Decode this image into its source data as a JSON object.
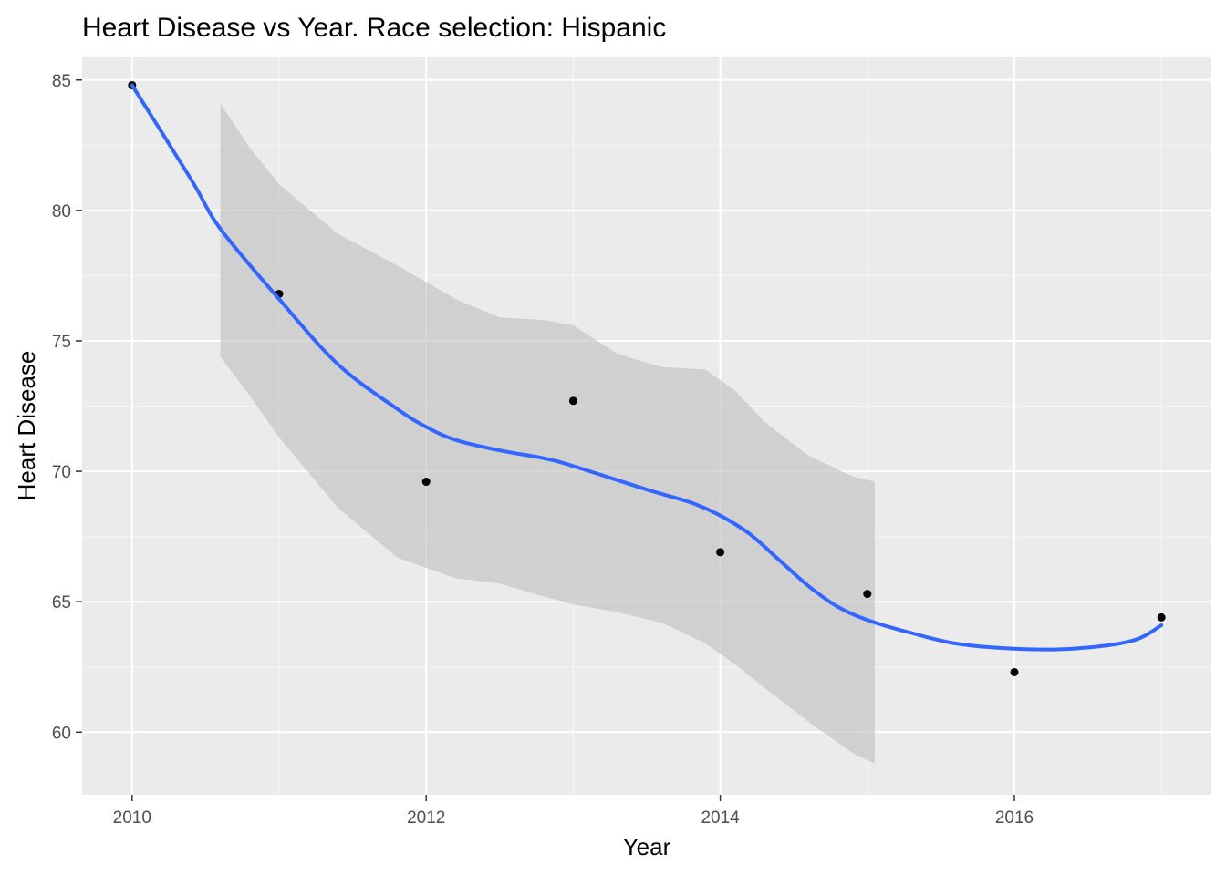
{
  "chart_data": {
    "type": "scatter",
    "title": "Heart Disease vs Year. Race selection: Hispanic",
    "xlabel": "Year",
    "ylabel": "Heart Disease",
    "xlim": [
      2009.66,
      2017.34
    ],
    "ylim": [
      57.6,
      85.9
    ],
    "x_ticks": [
      2010,
      2012,
      2014,
      2016
    ],
    "y_ticks": [
      60,
      65,
      70,
      75,
      80,
      85
    ],
    "x_tick_labels": [
      "2010",
      "2012",
      "2014",
      "2016"
    ],
    "y_tick_labels": [
      "60",
      "65",
      "70",
      "75",
      "80",
      "85"
    ],
    "grid": true,
    "points": [
      {
        "x": 2010,
        "y": 84.8
      },
      {
        "x": 2011,
        "y": 76.8
      },
      {
        "x": 2012,
        "y": 69.6
      },
      {
        "x": 2013,
        "y": 72.7
      },
      {
        "x": 2014,
        "y": 66.9
      },
      {
        "x": 2015,
        "y": 65.3
      },
      {
        "x": 2016,
        "y": 62.3
      },
      {
        "x": 2017,
        "y": 64.4
      }
    ],
    "smooth": {
      "x": [
        2010.0,
        2010.4,
        2010.6,
        2011.0,
        2011.4,
        2011.8,
        2012.0,
        2012.2,
        2012.5,
        2012.8,
        2013.0,
        2013.5,
        2013.8,
        2014.0,
        2014.2,
        2014.4,
        2014.6,
        2014.8,
        2015.0,
        2015.3,
        2015.6,
        2016.0,
        2016.4,
        2016.8,
        2017.0
      ],
      "y": [
        84.8,
        81.2,
        79.3,
        76.6,
        74.1,
        72.4,
        71.7,
        71.2,
        70.8,
        70.5,
        70.2,
        69.3,
        68.8,
        68.3,
        67.6,
        66.6,
        65.6,
        64.8,
        64.3,
        63.8,
        63.4,
        63.2,
        63.2,
        63.5,
        64.1
      ]
    },
    "ribbon": {
      "x": [
        2010.6,
        2010.8,
        2011.0,
        2011.4,
        2011.8,
        2012.2,
        2012.5,
        2012.8,
        2013.0,
        2013.3,
        2013.6,
        2013.9,
        2014.1,
        2014.3,
        2014.6,
        2014.9,
        2015.05
      ],
      "ymin": [
        74.4,
        72.9,
        71.3,
        68.6,
        66.7,
        65.9,
        65.7,
        65.2,
        64.9,
        64.6,
        64.2,
        63.4,
        62.6,
        61.7,
        60.4,
        59.2,
        58.8
      ],
      "ymax": [
        84.1,
        82.4,
        81.0,
        79.1,
        77.9,
        76.6,
        75.9,
        75.8,
        75.6,
        74.5,
        74.0,
        73.9,
        73.1,
        71.9,
        70.6,
        69.8,
        69.6
      ]
    },
    "colors": {
      "panel": "#ebebeb",
      "grid_major": "#ffffff",
      "grid_minor": "#f5f5f5",
      "smooth_line": "#3366ff",
      "ribbon": "#bebebe",
      "points": "#000000"
    }
  }
}
